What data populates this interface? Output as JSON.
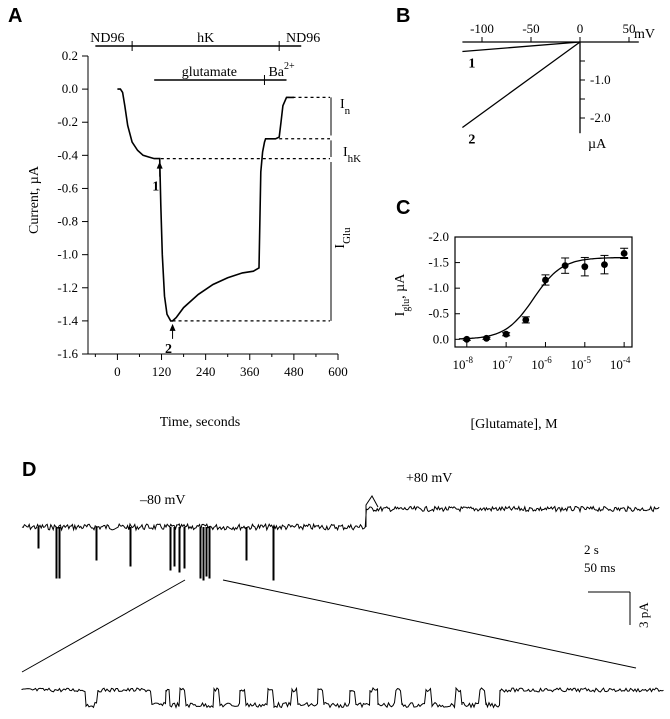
{
  "chart_data": [
    {
      "panel": "A",
      "type": "line",
      "xlabel": "Time, seconds",
      "ylabel": "Current, µA",
      "x_ticks": [
        0,
        120,
        240,
        360,
        480,
        600
      ],
      "y_ticks": [
        0.2,
        0.0,
        -0.2,
        -0.4,
        -0.6,
        -0.8,
        -1.0,
        -1.2,
        -1.4,
        -1.6
      ],
      "xlim": [
        -80,
        600
      ],
      "ylim": [
        -1.6,
        0.2
      ],
      "solution_bars": [
        {
          "label": "ND96",
          "from": -80,
          "to": 40
        },
        {
          "label": "hK",
          "from": 40,
          "to": 440
        },
        {
          "label": "ND96",
          "from": 440,
          "to": 520
        }
      ],
      "drug_bars": [
        {
          "label": "glutamate",
          "from": 100,
          "to": 400
        },
        {
          "label": "Ba",
          "superscript": "2+",
          "from": 400,
          "to": 460
        }
      ],
      "markers": [
        {
          "label": "1",
          "x": 115,
          "y": -0.42
        },
        {
          "label": "2",
          "x": 150,
          "y": -1.4
        }
      ],
      "bracket_labels": {
        "In_main": "I",
        "In_sub": "n",
        "IhK_main": "I",
        "IhK_sub": "hK",
        "IGlu_main": "I",
        "IGlu_sub": "Glu"
      },
      "series": [
        {
          "x": [
            0,
            8,
            14,
            20,
            28,
            40,
            55,
            70,
            85,
            100,
            115,
            118,
            122,
            128,
            135,
            145,
            150,
            160,
            180,
            220,
            260,
            300,
            340,
            370,
            385,
            390,
            395,
            400,
            403,
            410,
            430,
            440,
            445,
            450,
            460,
            470,
            480
          ],
          "y": [
            0.0,
            0.0,
            -0.02,
            -0.1,
            -0.22,
            -0.32,
            -0.37,
            -0.4,
            -0.41,
            -0.42,
            -0.42,
            -0.7,
            -1.0,
            -1.25,
            -1.36,
            -1.4,
            -1.4,
            -1.38,
            -1.32,
            -1.24,
            -1.18,
            -1.14,
            -1.11,
            -1.1,
            -1.08,
            -0.5,
            -0.38,
            -0.32,
            -0.3,
            -0.3,
            -0.3,
            -0.29,
            -0.2,
            -0.1,
            -0.05,
            -0.05,
            -0.05
          ]
        }
      ]
    },
    {
      "panel": "B",
      "type": "line",
      "xlabel": "mV",
      "ylabel": "µA",
      "x_ticks": [
        -100,
        -50,
        0,
        50
      ],
      "y_ticks": [
        -1.0,
        -2.0
      ],
      "xlim": [
        -120,
        60
      ],
      "ylim": [
        -2.6,
        0.2
      ],
      "series": [
        {
          "name": "1",
          "x": [
            -120,
            0
          ],
          "y": [
            -0.25,
            0.0
          ]
        },
        {
          "name": "2",
          "x": [
            -120,
            -80,
            -40,
            0
          ],
          "y": [
            -2.25,
            -1.5,
            -0.75,
            0.0
          ]
        }
      ]
    },
    {
      "panel": "C",
      "type": "scatter",
      "xlabel": "[Glutamate], M",
      "ylabel": "Iglu, µA",
      "ylabel_main": "I",
      "ylabel_sub": "glu",
      "ylabel_suffix": ", µA",
      "x_ticks": [
        -8,
        -7,
        -6,
        -5,
        -4
      ],
      "x_tick_base": "10",
      "x_tick_exps": [
        "-8",
        "-7",
        "-6",
        "-5",
        "-4"
      ],
      "y_ticks": [
        -2.0,
        -1.5,
        -1.0,
        -0.5,
        0.0
      ],
      "ylim": [
        -2.0,
        0.15
      ],
      "points": [
        {
          "logx": -8.0,
          "y": 0.0,
          "err": 0.02
        },
        {
          "logx": -7.5,
          "y": -0.02,
          "err": 0.02
        },
        {
          "logx": -7.0,
          "y": -0.1,
          "err": 0.03
        },
        {
          "logx": -6.5,
          "y": -0.38,
          "err": 0.06
        },
        {
          "logx": -6.0,
          "y": -1.16,
          "err": 0.1
        },
        {
          "logx": -5.5,
          "y": -1.44,
          "err": 0.15
        },
        {
          "logx": -5.0,
          "y": -1.42,
          "err": 0.18
        },
        {
          "logx": -4.5,
          "y": -1.46,
          "err": 0.18
        },
        {
          "logx": -4.0,
          "y": -1.68,
          "err": 0.1
        }
      ],
      "fit": {
        "top": -1.6,
        "ec50_log": -6.3,
        "hill": 1.2
      }
    }
  ],
  "panel_d": {
    "label_neg": "–80 mV",
    "label_pos": "+80 mV",
    "scale_time_long": "2 s",
    "scale_time_short": "50 ms",
    "scale_current": "3 pA"
  },
  "panels": {
    "a": "A",
    "b": "B",
    "c": "C",
    "d": "D"
  }
}
